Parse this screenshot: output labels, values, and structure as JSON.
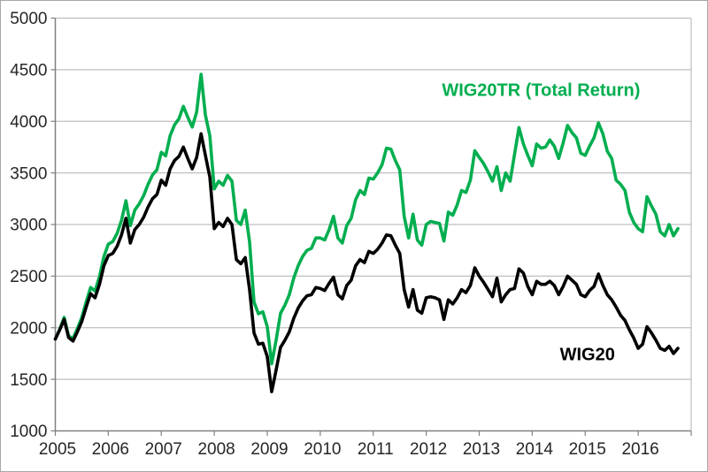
{
  "chart_data": {
    "type": "line",
    "title": "",
    "x_start": "2005-01",
    "x_end": "2016-10",
    "points_per_year": 12,
    "x_tick_labels": [
      "2005",
      "2006",
      "2007",
      "2008",
      "2009",
      "2010",
      "2011",
      "2012",
      "2013",
      "2014",
      "2015",
      "2016"
    ],
    "y_ticks": [
      5000,
      4500,
      4000,
      3500,
      3000,
      2500,
      2000,
      1500,
      1000
    ],
    "ylim": [
      1000,
      5000
    ],
    "grid": true,
    "legend_position": "inline-annotations",
    "colors": {
      "grid": "#BFBFBF",
      "axis": "#808080",
      "chart_border": "#A6A6A6",
      "tick_text": "#262626",
      "wig20tr_green": "#00AE4F",
      "wig20_black": "#000000"
    },
    "series": [
      {
        "name": "WIG20TR (Total Return)",
        "id": "wig20tr-line",
        "color": "#00AE4F",
        "values": [
          1890,
          1985,
          2100,
          1920,
          1895,
          1990,
          2100,
          2250,
          2390,
          2355,
          2495,
          2690,
          2810,
          2835,
          2915,
          3040,
          3230,
          2990,
          3140,
          3200,
          3280,
          3390,
          3480,
          3530,
          3700,
          3665,
          3860,
          3965,
          4025,
          4145,
          4040,
          3945,
          4090,
          4455,
          4060,
          3860,
          3345,
          3420,
          3380,
          3475,
          3420,
          3040,
          3000,
          3140,
          2830,
          2250,
          2135,
          2155,
          2010,
          1650,
          1880,
          2140,
          2220,
          2320,
          2480,
          2600,
          2690,
          2750,
          2770,
          2870,
          2870,
          2850,
          2950,
          3080,
          2870,
          2820,
          2990,
          3060,
          3240,
          3330,
          3290,
          3450,
          3440,
          3500,
          3580,
          3740,
          3730,
          3620,
          3530,
          3080,
          2870,
          3100,
          2850,
          2800,
          3000,
          3030,
          3020,
          3010,
          2840,
          3120,
          3090,
          3190,
          3330,
          3310,
          3430,
          3715,
          3650,
          3590,
          3510,
          3420,
          3560,
          3330,
          3500,
          3420,
          3680,
          3940,
          3780,
          3670,
          3570,
          3780,
          3740,
          3750,
          3820,
          3760,
          3640,
          3790,
          3960,
          3890,
          3840,
          3690,
          3670,
          3760,
          3840,
          3985,
          3880,
          3710,
          3640,
          3430,
          3390,
          3330,
          3120,
          3020,
          2960,
          2930,
          3270,
          3180,
          3100,
          2930,
          2890,
          3000,
          2890,
          2960
        ]
      },
      {
        "name": "WIG20",
        "id": "wig20-line",
        "color": "#000000",
        "values": [
          1890,
          1980,
          2080,
          1905,
          1870,
          1960,
          2060,
          2200,
          2330,
          2290,
          2420,
          2600,
          2700,
          2720,
          2790,
          2900,
          3060,
          2820,
          2950,
          3000,
          3070,
          3170,
          3250,
          3290,
          3430,
          3380,
          3540,
          3620,
          3660,
          3750,
          3640,
          3540,
          3650,
          3880,
          3670,
          3460,
          2960,
          3020,
          2980,
          3060,
          3000,
          2660,
          2620,
          2680,
          2370,
          1950,
          1840,
          1850,
          1720,
          1380,
          1590,
          1810,
          1880,
          1960,
          2090,
          2190,
          2260,
          2310,
          2320,
          2390,
          2380,
          2360,
          2430,
          2490,
          2320,
          2280,
          2410,
          2460,
          2600,
          2660,
          2630,
          2740,
          2720,
          2760,
          2820,
          2900,
          2890,
          2800,
          2720,
          2370,
          2200,
          2370,
          2170,
          2140,
          2290,
          2300,
          2290,
          2270,
          2080,
          2270,
          2230,
          2290,
          2370,
          2340,
          2410,
          2580,
          2500,
          2440,
          2370,
          2300,
          2480,
          2250,
          2320,
          2370,
          2380,
          2570,
          2530,
          2400,
          2320,
          2450,
          2420,
          2420,
          2450,
          2410,
          2320,
          2400,
          2500,
          2460,
          2420,
          2320,
          2300,
          2360,
          2400,
          2520,
          2410,
          2320,
          2270,
          2200,
          2120,
          2070,
          1980,
          1900,
          1800,
          1840,
          2010,
          1950,
          1880,
          1800,
          1780,
          1820,
          1750,
          1800
        ]
      }
    ],
    "annotations": [
      {
        "id": "wig20tr-series-label",
        "text": "WIG20TR (Total Return)",
        "month": 110,
        "value": 4307,
        "color": "#00AE4F"
      },
      {
        "id": "wig20-series-label",
        "text": "WIG20",
        "month": 120.5,
        "value": 1745,
        "color": "#000000"
      }
    ]
  }
}
